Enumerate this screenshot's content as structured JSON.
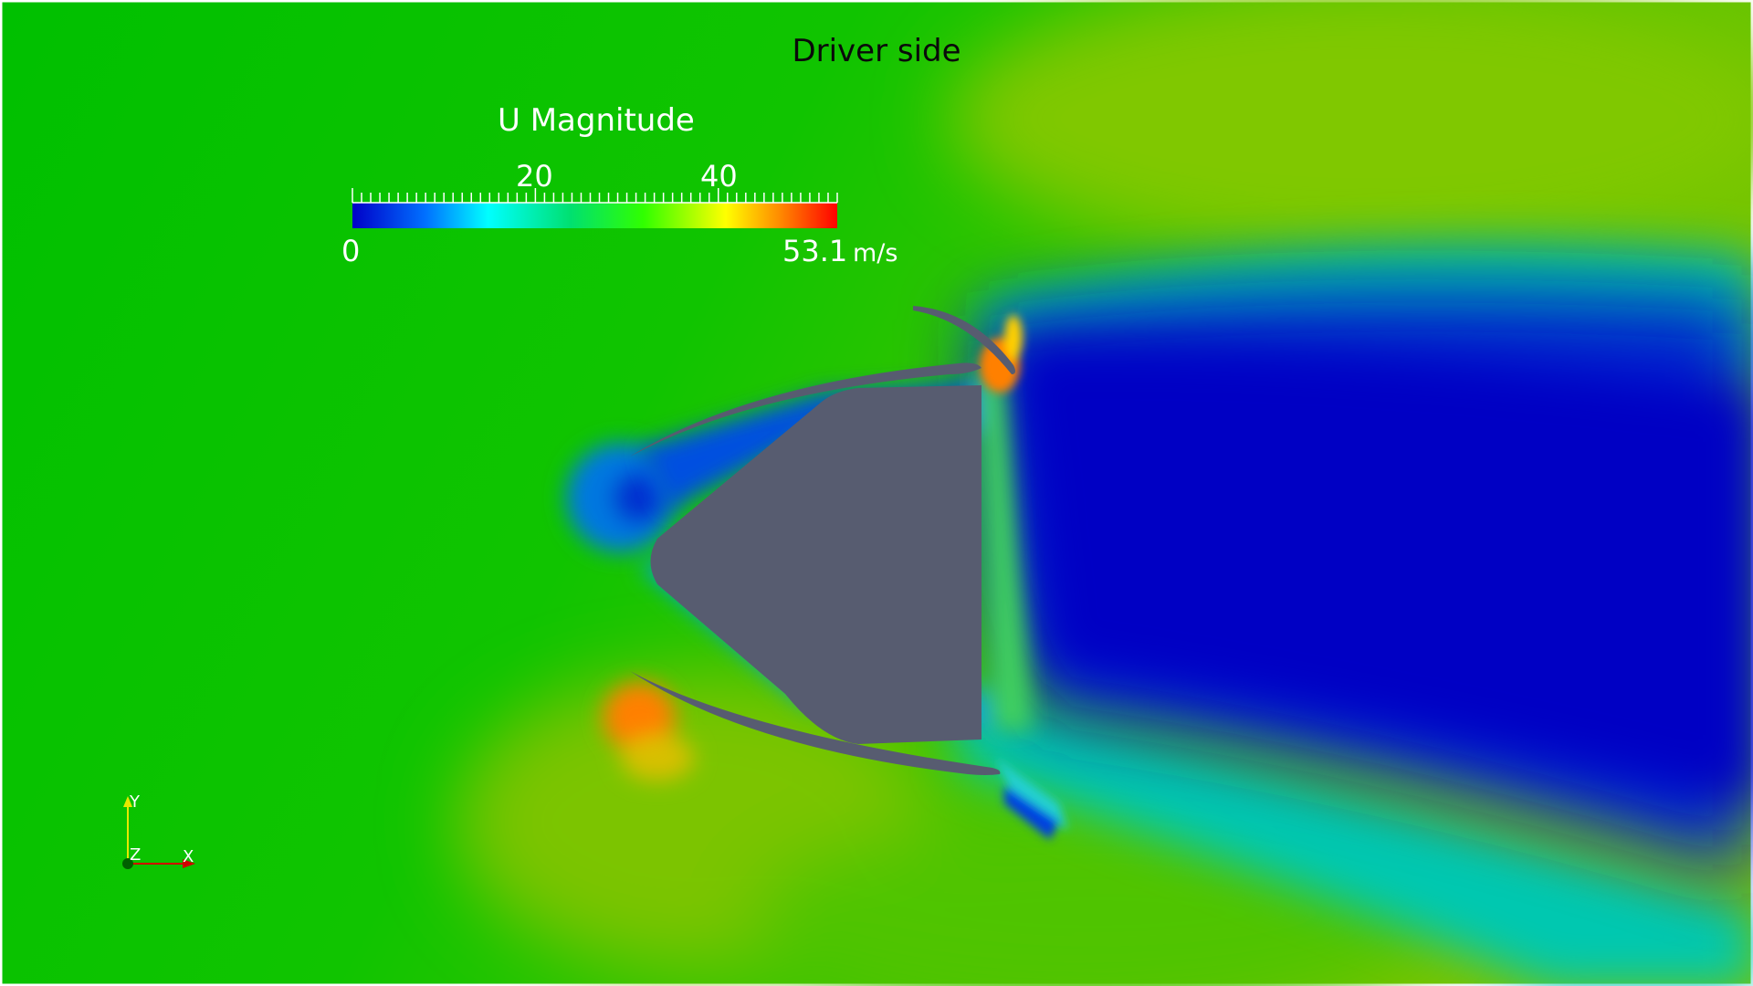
{
  "title": "Driver side",
  "colorbar": {
    "title": "U Magnitude",
    "ticks": [
      "20",
      "40"
    ],
    "min_label": "0",
    "max_label": "53.1",
    "unit": "m/s",
    "colormap": [
      "#0000b4",
      "#0060ff",
      "#00ffff",
      "#00ee60",
      "#22ff00",
      "#ffff00",
      "#ff8c00",
      "#ff0000"
    ]
  },
  "orientation_axes": {
    "x": "X",
    "y": "Y",
    "z": "Z"
  },
  "colors": {
    "freestream": "#00c000",
    "wake": "#0006c4",
    "body": "#575c70"
  }
}
